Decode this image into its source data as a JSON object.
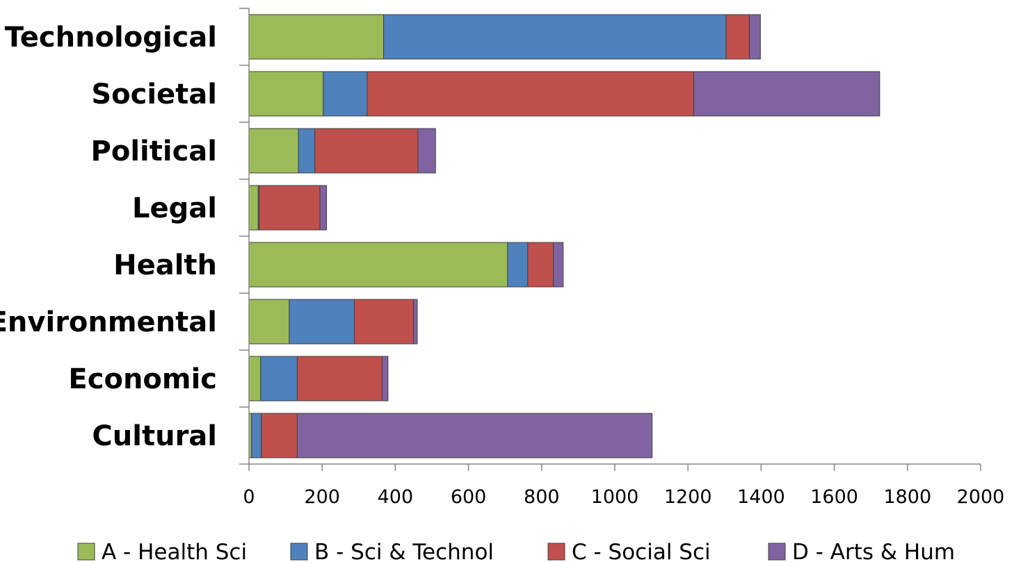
{
  "chart_data": {
    "type": "bar",
    "orientation": "horizontal",
    "stacked": true,
    "categories": [
      "Technological",
      "Societal",
      "Political",
      "Legal",
      "Health",
      "Environmental",
      "Economic",
      "Cultural"
    ],
    "series": [
      {
        "name": "A - Health Sci",
        "color": "#9BBB59",
        "values": [
          368,
          203,
          135,
          25,
          707,
          110,
          32,
          7
        ]
      },
      {
        "name": "B - Sci & Technol",
        "color": "#4F81BD",
        "values": [
          936,
          120,
          45,
          3,
          55,
          178,
          100,
          27
        ]
      },
      {
        "name": "C - Social Sci",
        "color": "#C0504D",
        "values": [
          64,
          893,
          282,
          166,
          70,
          162,
          232,
          98
        ]
      },
      {
        "name": "D -  Arts & Hum",
        "color": "#8064A2",
        "values": [
          30,
          508,
          48,
          18,
          27,
          10,
          16,
          970
        ]
      }
    ],
    "xlim": [
      0,
      2000
    ],
    "xticks": [
      0,
      200,
      400,
      600,
      800,
      1000,
      1200,
      1400,
      1600,
      1800,
      2000
    ],
    "xlabel": "",
    "ylabel": "",
    "title": "",
    "grid": false,
    "legend_position": "bottom"
  }
}
